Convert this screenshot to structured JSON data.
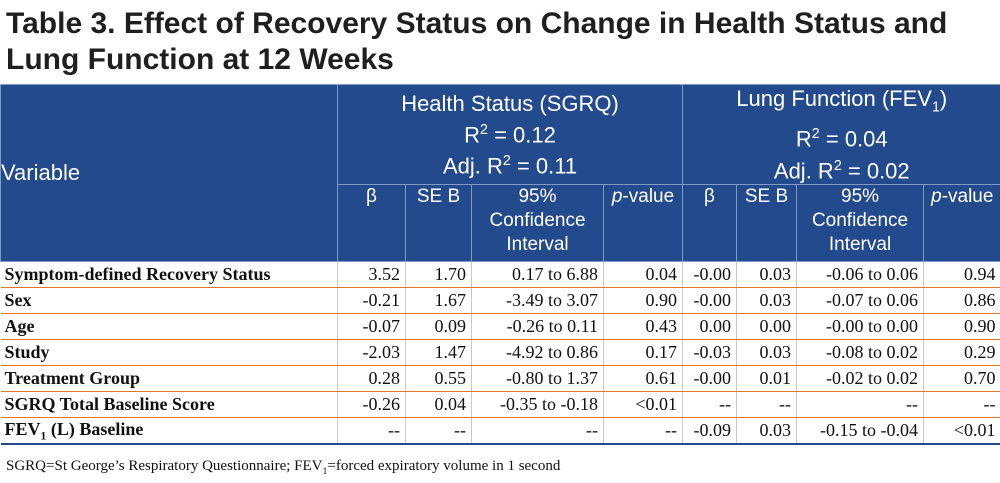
{
  "title": "Table 3. Effect of Recovery Status on Change in Health Status and Lung Function at 12 Weeks",
  "header": {
    "variable_label": "Variable",
    "group1": {
      "name": "Health Status (SGRQ)",
      "r2_prefix": "R",
      "r2_exp": "2",
      "r2_value": " = 0.12",
      "adj_prefix": "Adj. R",
      "adj_exp": "2",
      "adj_value": " = 0.11"
    },
    "group2": {
      "name_prefix": "Lung Function (FEV",
      "name_sub": "1",
      "name_suffix": ")",
      "r2_prefix": "R",
      "r2_exp": "2",
      "r2_value": " = 0.04",
      "adj_prefix": "Adj. R",
      "adj_exp": "2",
      "adj_value": " = 0.02"
    },
    "sub_beta": "β",
    "sub_se": "SE B",
    "sub_ci_1": "95%",
    "sub_ci_2": "Confidence",
    "sub_ci_3": "Interval",
    "sub_p_italic": "p",
    "sub_p_rest": "-value"
  },
  "rows": [
    {
      "label": "Symptom-defined Recovery Status",
      "cells": [
        "3.52",
        "1.70",
        "0.17 to 6.88",
        "0.04",
        "-0.00",
        "0.03",
        "-0.06 to 0.06",
        "0.94"
      ]
    },
    {
      "label": "Sex",
      "cells": [
        "-0.21",
        "1.67",
        "-3.49 to 3.07",
        "0.90",
        "-0.00",
        "0.03",
        "-0.07 to 0.06",
        "0.86"
      ]
    },
    {
      "label": "Age",
      "cells": [
        "-0.07",
        "0.09",
        "-0.26 to 0.11",
        "0.43",
        "0.00",
        "0.00",
        "-0.00 to 0.00",
        "0.90"
      ]
    },
    {
      "label": "Study",
      "cells": [
        "-2.03",
        "1.47",
        "-4.92 to 0.86",
        "0.17",
        "-0.03",
        "0.03",
        "-0.08 to 0.02",
        "0.29"
      ]
    },
    {
      "label": "Treatment Group",
      "cells": [
        "0.28",
        "0.55",
        "-0.80 to 1.37",
        "0.61",
        "-0.00",
        "0.01",
        "-0.02 to 0.02",
        "0.70"
      ]
    },
    {
      "label": "SGRQ Total Baseline Score",
      "cells": [
        "-0.26",
        "0.04",
        "-0.35 to -0.18",
        "<0.01",
        "--",
        "--",
        "--",
        "--"
      ]
    },
    {
      "label_prefix": "FEV",
      "label_sub": "1",
      "label_suffix": " (L) Baseline",
      "cells": [
        "--",
        "--",
        "--",
        "--",
        "-0.09",
        "0.03",
        "-0.15 to -0.04",
        "<0.01"
      ]
    }
  ],
  "footnote": {
    "part1": "SGRQ=St George’s Respiratory Questionnaire; FEV",
    "sub": "1",
    "part2": "=forced expiratory volume in 1 second"
  }
}
